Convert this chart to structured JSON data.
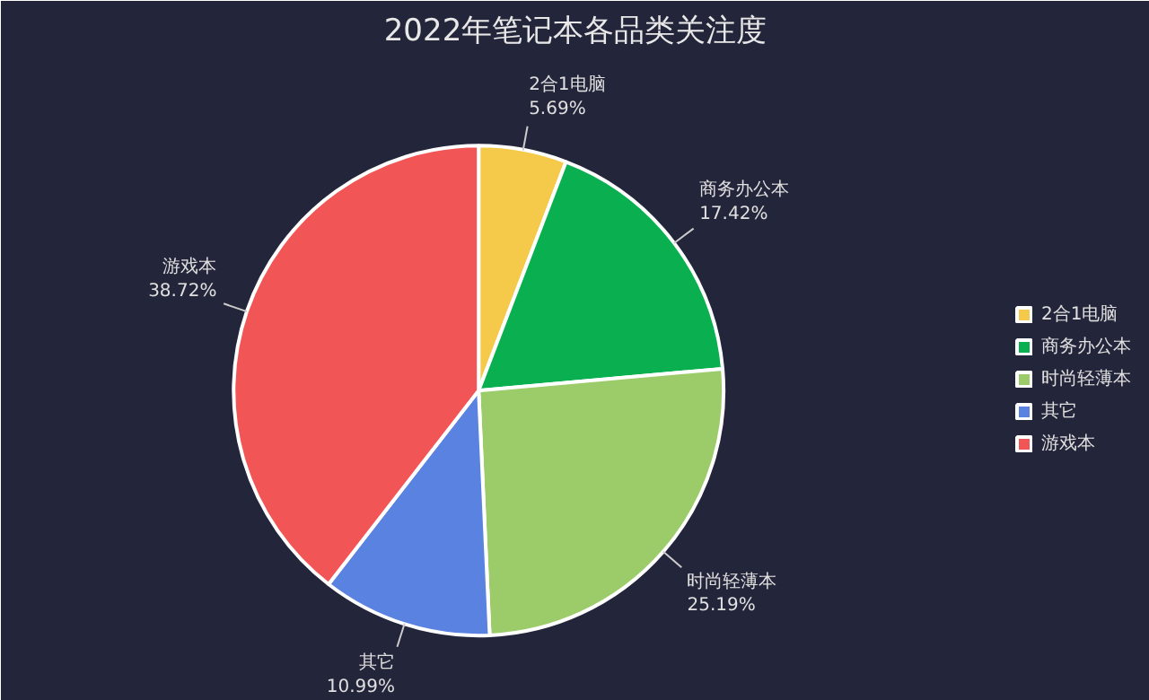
{
  "chart_data": {
    "type": "pie",
    "title": "2022年笔记本各品类关注度",
    "categories": [
      "2合1电脑",
      "商务办公本",
      "时尚轻薄本",
      "其它",
      "游戏本"
    ],
    "values": [
      5.69,
      17.42,
      25.19,
      10.99,
      38.72
    ],
    "colors": [
      "#f5c94a",
      "#0ab04f",
      "#9ccc6a",
      "#5a82e0",
      "#f25555"
    ],
    "value_labels": [
      "5.69%",
      "17.42%",
      "25.19%",
      "10.99%",
      "38.72%"
    ],
    "legend": "right"
  }
}
